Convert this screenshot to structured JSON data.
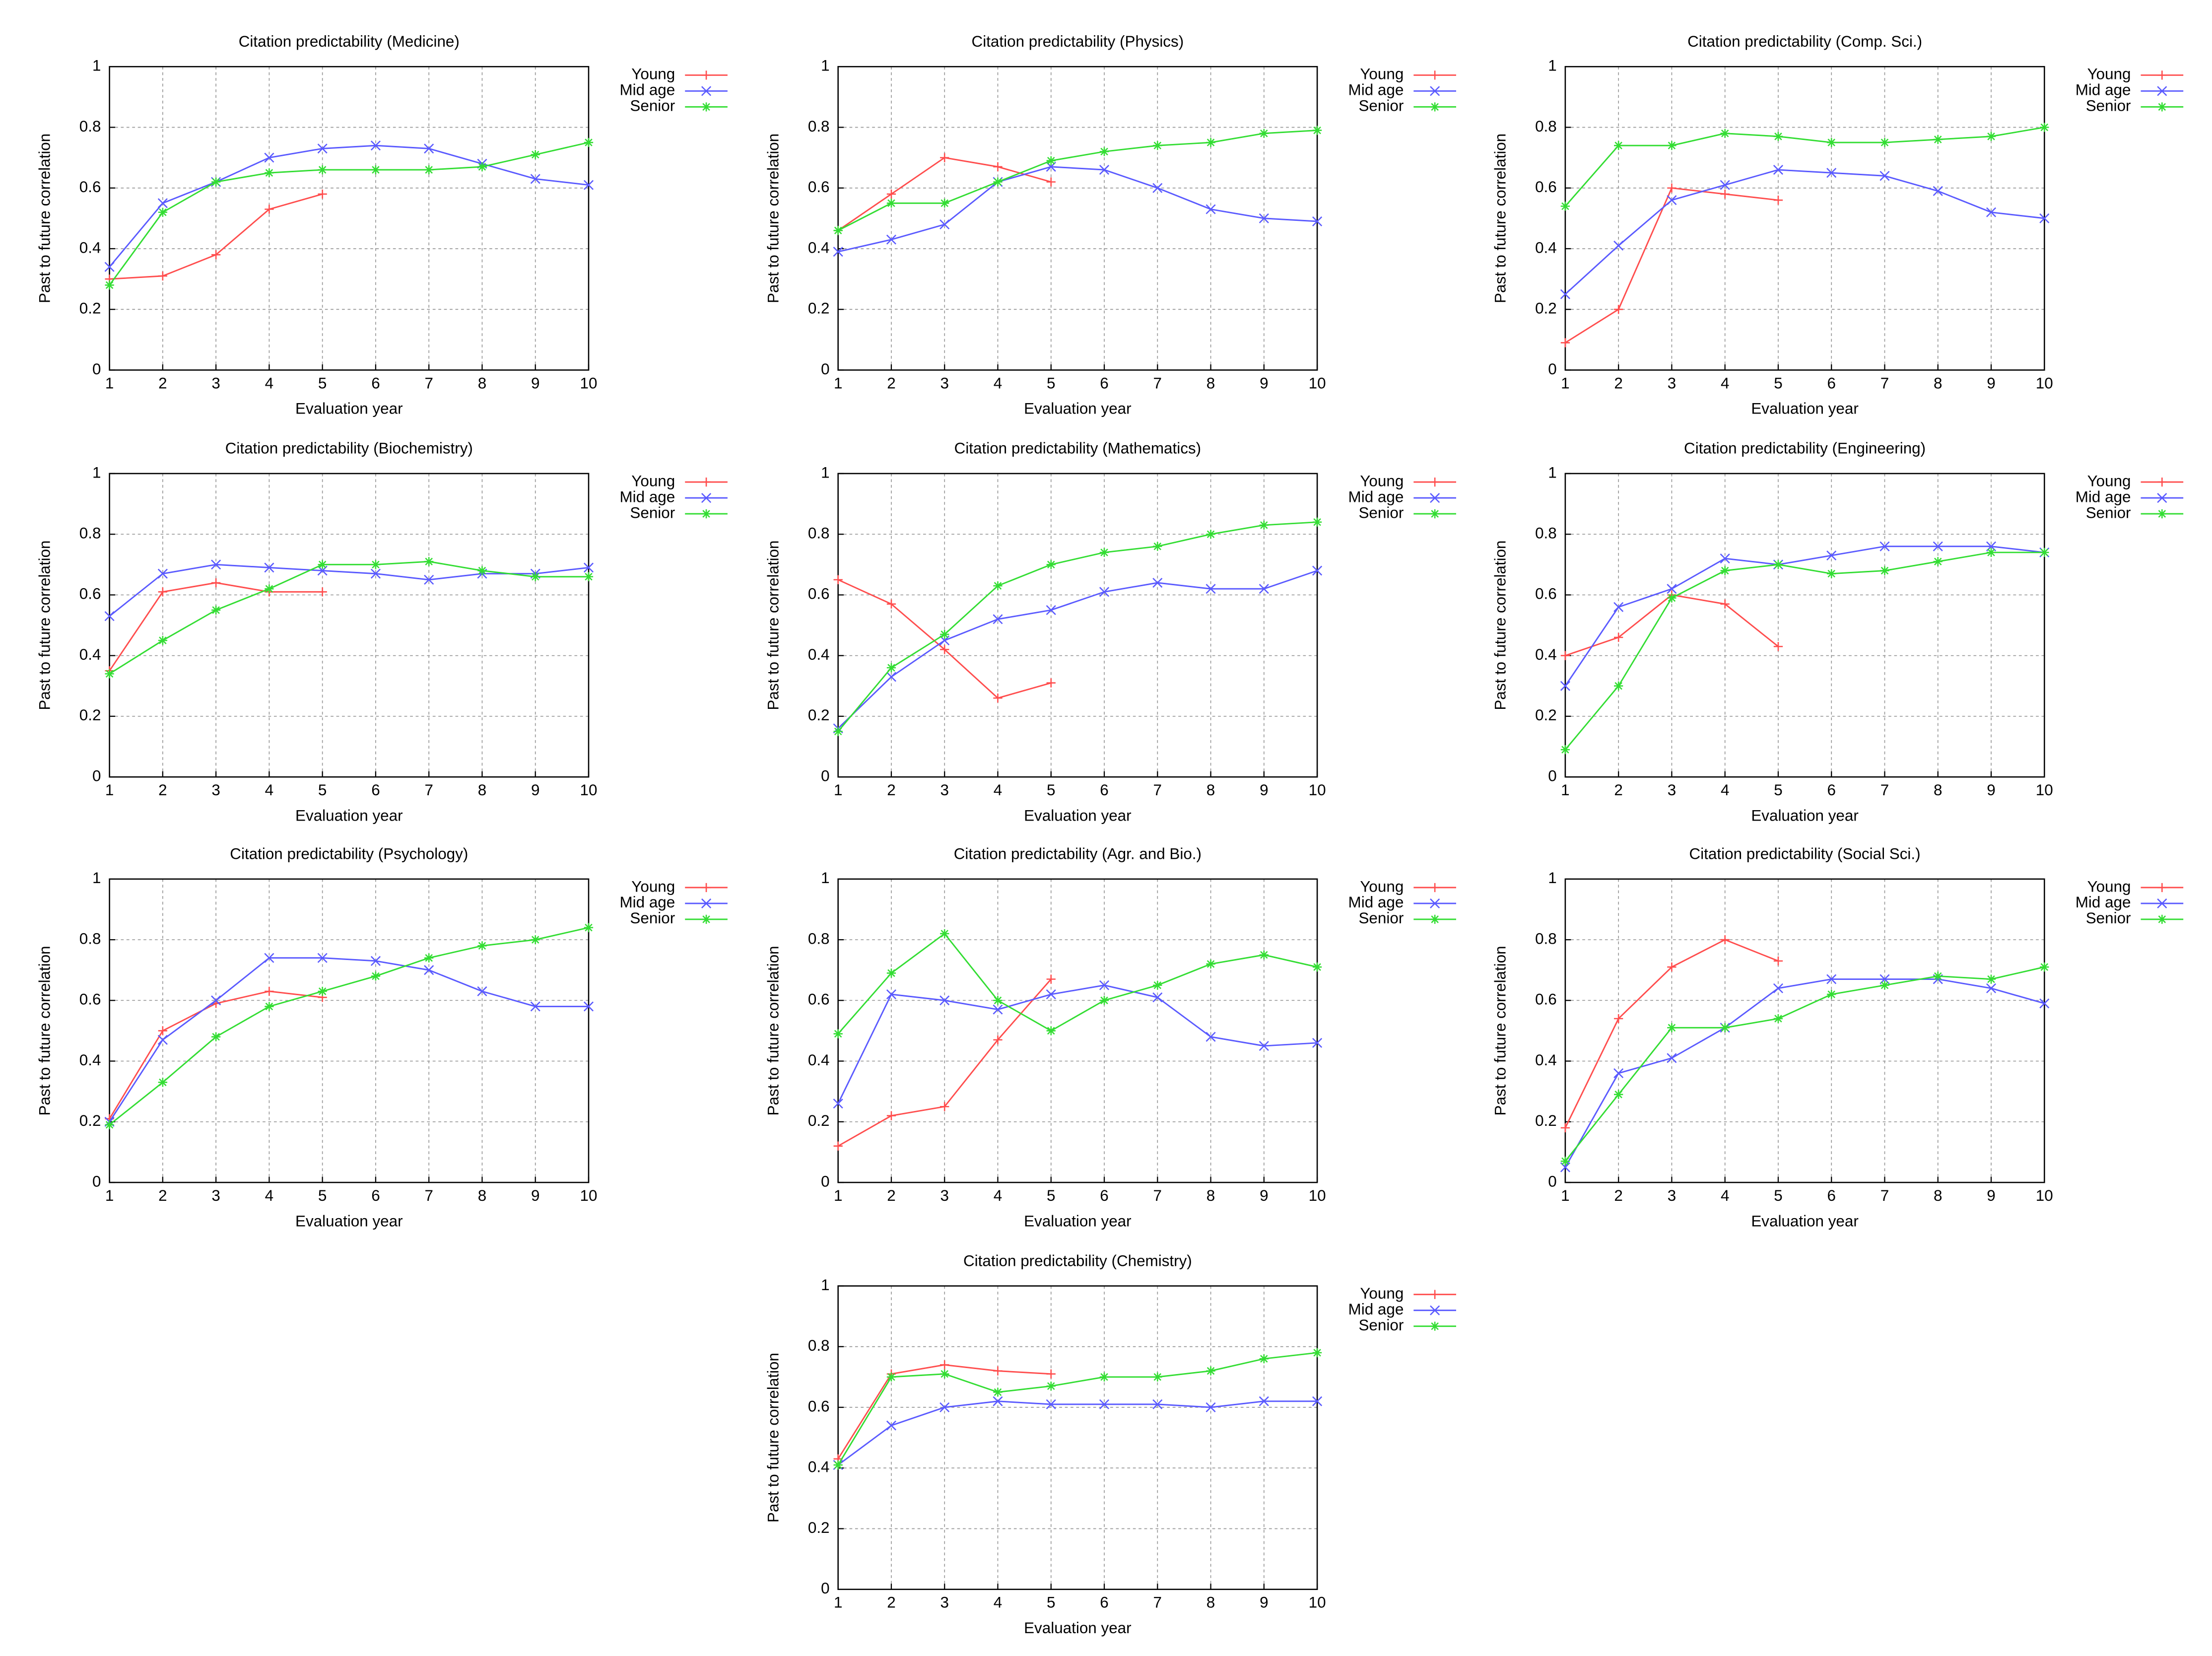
{
  "chart_data": [
    {
      "type": "line",
      "title": "Citation predictability (Medicine)",
      "xlabel": "Evaluation year",
      "ylabel": "Past to future correlation",
      "x": [
        1,
        2,
        3,
        4,
        5,
        6,
        7,
        8,
        9,
        10
      ],
      "xlim": [
        1,
        10
      ],
      "xticks": [
        1,
        2,
        3,
        4,
        5,
        6,
        7,
        8,
        9,
        10
      ],
      "ylim": [
        0,
        1
      ],
      "yticks": [
        0,
        0.2,
        0.4,
        0.6,
        0.8,
        1
      ],
      "grid": true,
      "legend": "right",
      "series": [
        {
          "name": "Young",
          "color": "#ff4d4d",
          "marker": "+",
          "values": [
            0.3,
            0.31,
            0.38,
            0.53,
            0.58,
            null,
            null,
            null,
            null,
            null
          ]
        },
        {
          "name": "Mid age",
          "color": "#5a5aff",
          "marker": "x",
          "values": [
            0.34,
            0.55,
            0.62,
            0.7,
            0.73,
            0.74,
            0.73,
            0.68,
            0.63,
            0.61
          ]
        },
        {
          "name": "Senior",
          "color": "#33dd33",
          "marker": "*",
          "values": [
            0.28,
            0.52,
            0.62,
            0.65,
            0.66,
            0.66,
            0.66,
            0.67,
            0.71,
            0.75
          ]
        }
      ]
    },
    {
      "type": "line",
      "title": "Citation predictability (Physics)",
      "xlabel": "Evaluation year",
      "ylabel": "Past to future correlation",
      "x": [
        1,
        2,
        3,
        4,
        5,
        6,
        7,
        8,
        9,
        10
      ],
      "xlim": [
        1,
        10
      ],
      "xticks": [
        1,
        2,
        3,
        4,
        5,
        6,
        7,
        8,
        9,
        10
      ],
      "ylim": [
        0,
        1
      ],
      "yticks": [
        0,
        0.2,
        0.4,
        0.6,
        0.8,
        1
      ],
      "grid": true,
      "legend": "right",
      "series": [
        {
          "name": "Young",
          "color": "#ff4d4d",
          "marker": "+",
          "values": [
            0.46,
            0.58,
            0.7,
            0.67,
            0.62,
            null,
            null,
            null,
            null,
            null
          ]
        },
        {
          "name": "Mid age",
          "color": "#5a5aff",
          "marker": "x",
          "values": [
            0.39,
            0.43,
            0.48,
            0.62,
            0.67,
            0.66,
            0.6,
            0.53,
            0.5,
            0.49
          ]
        },
        {
          "name": "Senior",
          "color": "#33dd33",
          "marker": "*",
          "values": [
            0.46,
            0.55,
            0.55,
            0.62,
            0.69,
            0.72,
            0.74,
            0.75,
            0.78,
            0.79
          ]
        }
      ]
    },
    {
      "type": "line",
      "title": "Citation predictability (Comp. Sci.)",
      "xlabel": "Evaluation year",
      "ylabel": "Past to future correlation",
      "x": [
        1,
        2,
        3,
        4,
        5,
        6,
        7,
        8,
        9,
        10
      ],
      "xlim": [
        1,
        10
      ],
      "xticks": [
        1,
        2,
        3,
        4,
        5,
        6,
        7,
        8,
        9,
        10
      ],
      "ylim": [
        0,
        1
      ],
      "yticks": [
        0,
        0.2,
        0.4,
        0.6,
        0.8,
        1
      ],
      "grid": true,
      "legend": "right",
      "series": [
        {
          "name": "Young",
          "color": "#ff4d4d",
          "marker": "+",
          "values": [
            0.09,
            0.2,
            0.6,
            0.58,
            0.56,
            null,
            null,
            null,
            null,
            null
          ]
        },
        {
          "name": "Mid age",
          "color": "#5a5aff",
          "marker": "x",
          "values": [
            0.25,
            0.41,
            0.56,
            0.61,
            0.66,
            0.65,
            0.64,
            0.59,
            0.52,
            0.5
          ]
        },
        {
          "name": "Senior",
          "color": "#33dd33",
          "marker": "*",
          "values": [
            0.54,
            0.74,
            0.74,
            0.78,
            0.77,
            0.75,
            0.75,
            0.76,
            0.77,
            0.8
          ]
        }
      ]
    },
    {
      "type": "line",
      "title": "Citation predictability (Biochemistry)",
      "xlabel": "Evaluation year",
      "ylabel": "Past to future correlation",
      "x": [
        1,
        2,
        3,
        4,
        5,
        6,
        7,
        8,
        9,
        10
      ],
      "xlim": [
        1,
        10
      ],
      "xticks": [
        1,
        2,
        3,
        4,
        5,
        6,
        7,
        8,
        9,
        10
      ],
      "ylim": [
        0,
        1
      ],
      "yticks": [
        0,
        0.2,
        0.4,
        0.6,
        0.8,
        1
      ],
      "grid": true,
      "legend": "right",
      "series": [
        {
          "name": "Young",
          "color": "#ff4d4d",
          "marker": "+",
          "values": [
            0.35,
            0.61,
            0.64,
            0.61,
            0.61,
            null,
            null,
            null,
            null,
            null
          ]
        },
        {
          "name": "Mid age",
          "color": "#5a5aff",
          "marker": "x",
          "values": [
            0.53,
            0.67,
            0.7,
            0.69,
            0.68,
            0.67,
            0.65,
            0.67,
            0.67,
            0.69
          ]
        },
        {
          "name": "Senior",
          "color": "#33dd33",
          "marker": "*",
          "values": [
            0.34,
            0.45,
            0.55,
            0.62,
            0.7,
            0.7,
            0.71,
            0.68,
            0.66,
            0.66
          ]
        }
      ]
    },
    {
      "type": "line",
      "title": "Citation predictability (Mathematics)",
      "xlabel": "Evaluation year",
      "ylabel": "Past to future correlation",
      "x": [
        1,
        2,
        3,
        4,
        5,
        6,
        7,
        8,
        9,
        10
      ],
      "xlim": [
        1,
        10
      ],
      "xticks": [
        1,
        2,
        3,
        4,
        5,
        6,
        7,
        8,
        9,
        10
      ],
      "ylim": [
        0,
        1
      ],
      "yticks": [
        0,
        0.2,
        0.4,
        0.6,
        0.8,
        1
      ],
      "grid": true,
      "legend": "right",
      "series": [
        {
          "name": "Young",
          "color": "#ff4d4d",
          "marker": "+",
          "values": [
            0.65,
            0.57,
            0.42,
            0.26,
            0.31,
            null,
            null,
            null,
            null,
            null
          ]
        },
        {
          "name": "Mid age",
          "color": "#5a5aff",
          "marker": "x",
          "values": [
            0.16,
            0.33,
            0.45,
            0.52,
            0.55,
            0.61,
            0.64,
            0.62,
            0.62,
            0.68
          ]
        },
        {
          "name": "Senior",
          "color": "#33dd33",
          "marker": "*",
          "values": [
            0.15,
            0.36,
            0.47,
            0.63,
            0.7,
            0.74,
            0.76,
            0.8,
            0.83,
            0.84
          ]
        }
      ]
    },
    {
      "type": "line",
      "title": "Citation predictability (Engineering)",
      "xlabel": "Evaluation year",
      "ylabel": "Past to future correlation",
      "x": [
        1,
        2,
        3,
        4,
        5,
        6,
        7,
        8,
        9,
        10
      ],
      "xlim": [
        1,
        10
      ],
      "xticks": [
        1,
        2,
        3,
        4,
        5,
        6,
        7,
        8,
        9,
        10
      ],
      "ylim": [
        0,
        1
      ],
      "yticks": [
        0,
        0.2,
        0.4,
        0.6,
        0.8,
        1
      ],
      "grid": true,
      "legend": "right",
      "series": [
        {
          "name": "Young",
          "color": "#ff4d4d",
          "marker": "+",
          "values": [
            0.4,
            0.46,
            0.6,
            0.57,
            0.43,
            null,
            null,
            null,
            null,
            null
          ]
        },
        {
          "name": "Mid age",
          "color": "#5a5aff",
          "marker": "x",
          "values": [
            0.3,
            0.56,
            0.62,
            0.72,
            0.7,
            0.73,
            0.76,
            0.76,
            0.76,
            0.74
          ]
        },
        {
          "name": "Senior",
          "color": "#33dd33",
          "marker": "*",
          "values": [
            0.09,
            0.3,
            0.59,
            0.68,
            0.7,
            0.67,
            0.68,
            0.71,
            0.74,
            0.74
          ]
        }
      ]
    },
    {
      "type": "line",
      "title": "Citation predictability (Psychology)",
      "xlabel": "Evaluation year",
      "ylabel": "Past to future correlation",
      "x": [
        1,
        2,
        3,
        4,
        5,
        6,
        7,
        8,
        9,
        10
      ],
      "xlim": [
        1,
        10
      ],
      "xticks": [
        1,
        2,
        3,
        4,
        5,
        6,
        7,
        8,
        9,
        10
      ],
      "ylim": [
        0,
        1
      ],
      "yticks": [
        0,
        0.2,
        0.4,
        0.6,
        0.8,
        1
      ],
      "grid": true,
      "legend": "right",
      "series": [
        {
          "name": "Young",
          "color": "#ff4d4d",
          "marker": "+",
          "values": [
            0.21,
            0.5,
            0.59,
            0.63,
            0.61,
            null,
            null,
            null,
            null,
            null
          ]
        },
        {
          "name": "Mid age",
          "color": "#5a5aff",
          "marker": "x",
          "values": [
            0.2,
            0.47,
            0.6,
            0.74,
            0.74,
            0.73,
            0.7,
            0.63,
            0.58,
            0.58
          ]
        },
        {
          "name": "Senior",
          "color": "#33dd33",
          "marker": "*",
          "values": [
            0.19,
            0.33,
            0.48,
            0.58,
            0.63,
            0.68,
            0.74,
            0.78,
            0.8,
            0.84
          ]
        }
      ]
    },
    {
      "type": "line",
      "title": "Citation predictability (Agr. and Bio.)",
      "xlabel": "Evaluation year",
      "ylabel": "Past to future correlation",
      "x": [
        1,
        2,
        3,
        4,
        5,
        6,
        7,
        8,
        9,
        10
      ],
      "xlim": [
        1,
        10
      ],
      "xticks": [
        1,
        2,
        3,
        4,
        5,
        6,
        7,
        8,
        9,
        10
      ],
      "ylim": [
        0,
        1
      ],
      "yticks": [
        0,
        0.2,
        0.4,
        0.6,
        0.8,
        1
      ],
      "grid": true,
      "legend": "right",
      "series": [
        {
          "name": "Young",
          "color": "#ff4d4d",
          "marker": "+",
          "values": [
            0.12,
            0.22,
            0.25,
            0.47,
            0.67,
            null,
            null,
            null,
            null,
            null
          ]
        },
        {
          "name": "Mid age",
          "color": "#5a5aff",
          "marker": "x",
          "values": [
            0.26,
            0.62,
            0.6,
            0.57,
            0.62,
            0.65,
            0.61,
            0.48,
            0.45,
            0.46
          ]
        },
        {
          "name": "Senior",
          "color": "#33dd33",
          "marker": "*",
          "values": [
            0.49,
            0.69,
            0.82,
            0.6,
            0.5,
            0.6,
            0.65,
            0.72,
            0.75,
            0.71
          ]
        }
      ]
    },
    {
      "type": "line",
      "title": "Citation predictability (Social Sci.)",
      "xlabel": "Evaluation year",
      "ylabel": "Past to future correlation",
      "x": [
        1,
        2,
        3,
        4,
        5,
        6,
        7,
        8,
        9,
        10
      ],
      "xlim": [
        1,
        10
      ],
      "xticks": [
        1,
        2,
        3,
        4,
        5,
        6,
        7,
        8,
        9,
        10
      ],
      "ylim": [
        0,
        1
      ],
      "yticks": [
        0,
        0.2,
        0.4,
        0.6,
        0.8,
        1
      ],
      "grid": true,
      "legend": "right",
      "series": [
        {
          "name": "Young",
          "color": "#ff4d4d",
          "marker": "+",
          "values": [
            0.18,
            0.54,
            0.71,
            0.8,
            0.73,
            null,
            null,
            null,
            null,
            null
          ]
        },
        {
          "name": "Mid age",
          "color": "#5a5aff",
          "marker": "x",
          "values": [
            0.05,
            0.36,
            0.41,
            0.51,
            0.64,
            0.67,
            0.67,
            0.67,
            0.64,
            0.59
          ]
        },
        {
          "name": "Senior",
          "color": "#33dd33",
          "marker": "*",
          "values": [
            0.07,
            0.29,
            0.51,
            0.51,
            0.54,
            0.62,
            0.65,
            0.68,
            0.67,
            0.71
          ]
        }
      ]
    },
    {
      "type": "line",
      "title": "Citation predictability (Chemistry)",
      "xlabel": "Evaluation year",
      "ylabel": "Past to future correlation",
      "x": [
        1,
        2,
        3,
        4,
        5,
        6,
        7,
        8,
        9,
        10
      ],
      "xlim": [
        1,
        10
      ],
      "xticks": [
        1,
        2,
        3,
        4,
        5,
        6,
        7,
        8,
        9,
        10
      ],
      "ylim": [
        0,
        1
      ],
      "yticks": [
        0,
        0.2,
        0.4,
        0.6,
        0.8,
        1
      ],
      "grid": true,
      "legend": "right",
      "series": [
        {
          "name": "Young",
          "color": "#ff4d4d",
          "marker": "+",
          "values": [
            0.43,
            0.71,
            0.74,
            0.72,
            0.71,
            null,
            null,
            null,
            null,
            null
          ]
        },
        {
          "name": "Mid age",
          "color": "#5a5aff",
          "marker": "x",
          "values": [
            0.41,
            0.54,
            0.6,
            0.62,
            0.61,
            0.61,
            0.61,
            0.6,
            0.62,
            0.62
          ]
        },
        {
          "name": "Senior",
          "color": "#33dd33",
          "marker": "*",
          "values": [
            0.41,
            0.7,
            0.71,
            0.65,
            0.67,
            0.7,
            0.7,
            0.72,
            0.76,
            0.78
          ]
        }
      ]
    }
  ]
}
